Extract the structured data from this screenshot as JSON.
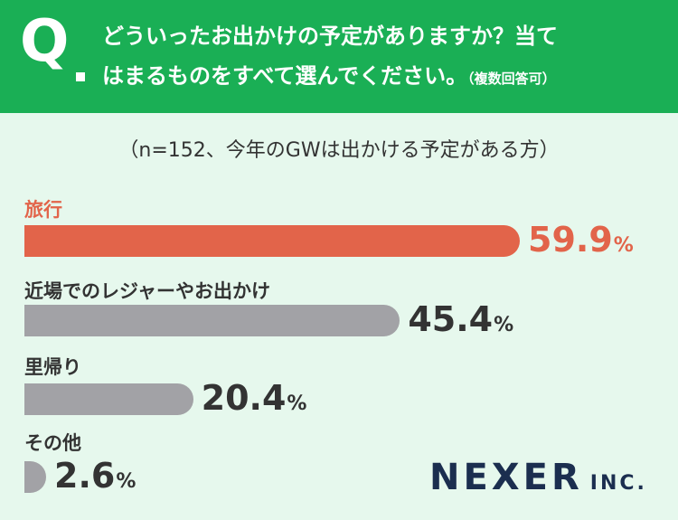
{
  "question": {
    "letter": "Q",
    "line1": "どういったお出かけの予定がありますか？当て",
    "line2": "はまるものをすべて選んでください。",
    "note": "（複数回答可）"
  },
  "subtitle": "（n=152、今年のGWは出かける予定がある方）",
  "brand": {
    "name": "NEXER",
    "suffix": "INC."
  },
  "colors": {
    "header": "#1aaf55",
    "highlight": "#e2644a",
    "bar": "#a2a2a6",
    "background": "#e6f8ed"
  },
  "chart_data": {
    "type": "bar",
    "orientation": "horizontal",
    "unit": "%",
    "categories": [
      "旅行",
      "近場でのレジャーやお出かけ",
      "里帰り",
      "その他"
    ],
    "values": [
      59.9,
      45.4,
      20.4,
      2.6
    ],
    "value_labels": [
      "59.9",
      "45.4",
      "20.4",
      "2.6"
    ],
    "highlight_index": 0
  }
}
